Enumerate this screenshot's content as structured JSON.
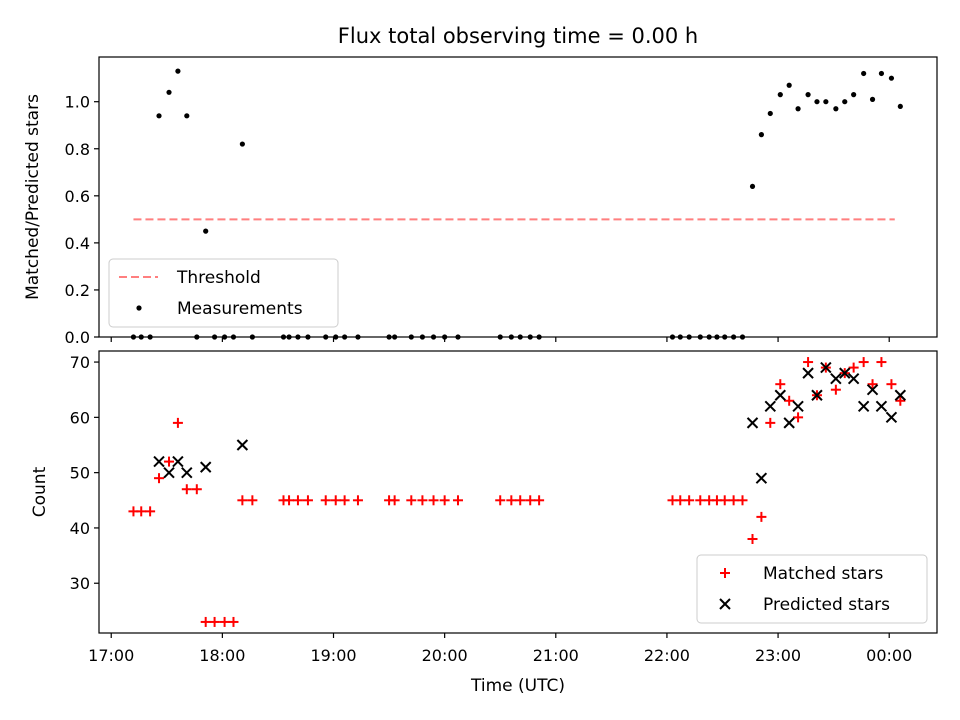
{
  "figure_title": "Flux total observing time = 0.00 h",
  "colors": {
    "threshold": "#ff7f7f",
    "measurements": "#000000",
    "matched": "#ff0000",
    "predicted": "#000000"
  },
  "chart_data": [
    {
      "type": "scatter",
      "panel": "top",
      "title": "Flux total observing time = 0.00 h",
      "xlabel": "",
      "ylabel": "Matched/Predicted stars",
      "x_unit": "hours (UTC, continuing past midnight as 24:xx)",
      "xlim": [
        16.89,
        24.43
      ],
      "ylim": [
        0.0,
        1.19
      ],
      "yticks": [
        0.0,
        0.2,
        0.4,
        0.6,
        0.8,
        1.0
      ],
      "ytick_labels": [
        "0.0",
        "0.2",
        "0.4",
        "0.6",
        "0.8",
        "1.0"
      ],
      "xticks": [
        17,
        18,
        19,
        20,
        21,
        22,
        23,
        24
      ],
      "show_xtick_labels": false,
      "grid": false,
      "legend": {
        "placement": "lower-left",
        "entries": [
          "Threshold",
          "Measurements"
        ]
      },
      "series": [
        {
          "name": "Threshold",
          "style": "dashed-line",
          "x": [
            17.2,
            24.05
          ],
          "y": [
            0.5,
            0.5
          ]
        },
        {
          "name": "Measurements",
          "style": "dots",
          "x": [
            17.2,
            17.27,
            17.35,
            17.43,
            17.52,
            17.6,
            17.68,
            17.77,
            17.85,
            17.93,
            18.02,
            18.1,
            18.18,
            18.27,
            18.55,
            18.6,
            18.68,
            18.77,
            18.93,
            19.02,
            19.1,
            19.22,
            19.5,
            19.55,
            19.7,
            19.8,
            19.9,
            20.0,
            20.12,
            20.5,
            20.6,
            20.68,
            20.77,
            20.85,
            22.05,
            22.12,
            22.2,
            22.3,
            22.38,
            22.45,
            22.52,
            22.6,
            22.68,
            22.77,
            22.85,
            22.93,
            23.02,
            23.1,
            23.18,
            23.27,
            23.35,
            23.43,
            23.52,
            23.6,
            23.68,
            23.77,
            23.85,
            23.93,
            24.02,
            24.1
          ],
          "y": [
            0.0,
            0.0,
            0.0,
            0.94,
            1.04,
            1.13,
            0.94,
            0.0,
            0.45,
            0.0,
            0.0,
            0.0,
            0.82,
            0.0,
            0.0,
            0.0,
            0.0,
            0.0,
            0.0,
            0.0,
            0.0,
            0.0,
            0.0,
            0.0,
            0.0,
            0.0,
            0.0,
            0.0,
            0.0,
            0.0,
            0.0,
            0.0,
            0.0,
            0.0,
            0.0,
            0.0,
            0.0,
            0.0,
            0.0,
            0.0,
            0.0,
            0.0,
            0.0,
            0.64,
            0.86,
            0.95,
            1.03,
            1.07,
            0.97,
            1.03,
            1.0,
            1.0,
            0.97,
            1.0,
            1.03,
            1.12,
            1.01,
            1.12,
            1.1,
            0.98
          ]
        }
      ]
    },
    {
      "type": "scatter",
      "panel": "bottom",
      "xlabel": "Time (UTC)",
      "ylabel": "Count",
      "x_unit": "hours (UTC, continuing past midnight as 24:xx)",
      "xlim": [
        16.89,
        24.43
      ],
      "ylim": [
        21,
        72
      ],
      "yticks": [
        30,
        40,
        50,
        60,
        70
      ],
      "ytick_labels": [
        "30",
        "40",
        "50",
        "60",
        "70"
      ],
      "xticks": [
        17,
        18,
        19,
        20,
        21,
        22,
        23,
        24
      ],
      "xtick_labels": [
        "17:00",
        "18:00",
        "19:00",
        "20:00",
        "21:00",
        "22:00",
        "23:00",
        "00:00"
      ],
      "grid": false,
      "legend": {
        "placement": "lower-right",
        "entries": [
          "Matched stars",
          "Predicted stars"
        ]
      },
      "series": [
        {
          "name": "Matched stars",
          "marker": "plus",
          "x": [
            17.2,
            17.27,
            17.35,
            17.43,
            17.52,
            17.6,
            17.68,
            17.77,
            17.85,
            17.93,
            18.02,
            18.1,
            18.18,
            18.27,
            18.55,
            18.6,
            18.68,
            18.77,
            18.93,
            19.02,
            19.1,
            19.22,
            19.5,
            19.55,
            19.7,
            19.8,
            19.9,
            20.0,
            20.12,
            20.5,
            20.6,
            20.68,
            20.77,
            20.85,
            22.05,
            22.12,
            22.2,
            22.3,
            22.38,
            22.45,
            22.52,
            22.6,
            22.68,
            22.77,
            22.85,
            22.93,
            23.02,
            23.1,
            23.18,
            23.27,
            23.35,
            23.43,
            23.52,
            23.6,
            23.68,
            23.77,
            23.85,
            23.93,
            24.02,
            24.1
          ],
          "y": [
            43,
            43,
            43,
            49,
            52,
            59,
            47,
            47,
            23,
            23,
            23,
            23,
            45,
            45,
            45,
            45,
            45,
            45,
            45,
            45,
            45,
            45,
            45,
            45,
            45,
            45,
            45,
            45,
            45,
            45,
            45,
            45,
            45,
            45,
            45,
            45,
            45,
            45,
            45,
            45,
            45,
            45,
            45,
            38,
            42,
            59,
            66,
            63,
            60,
            70,
            64,
            69,
            65,
            68,
            69,
            70,
            66,
            70,
            66,
            63
          ]
        },
        {
          "name": "Predicted stars",
          "marker": "x",
          "x": [
            17.43,
            17.52,
            17.6,
            17.68,
            17.85,
            18.18,
            22.77,
            22.85,
            22.93,
            23.02,
            23.1,
            23.18,
            23.27,
            23.35,
            23.43,
            23.52,
            23.6,
            23.68,
            23.77,
            23.85,
            23.93,
            24.02,
            24.1
          ],
          "y": [
            52,
            50,
            52,
            50,
            51,
            55,
            59,
            49,
            62,
            64,
            59,
            62,
            68,
            64,
            69,
            67,
            68,
            67,
            62,
            65,
            62,
            60,
            64
          ]
        }
      ]
    }
  ]
}
